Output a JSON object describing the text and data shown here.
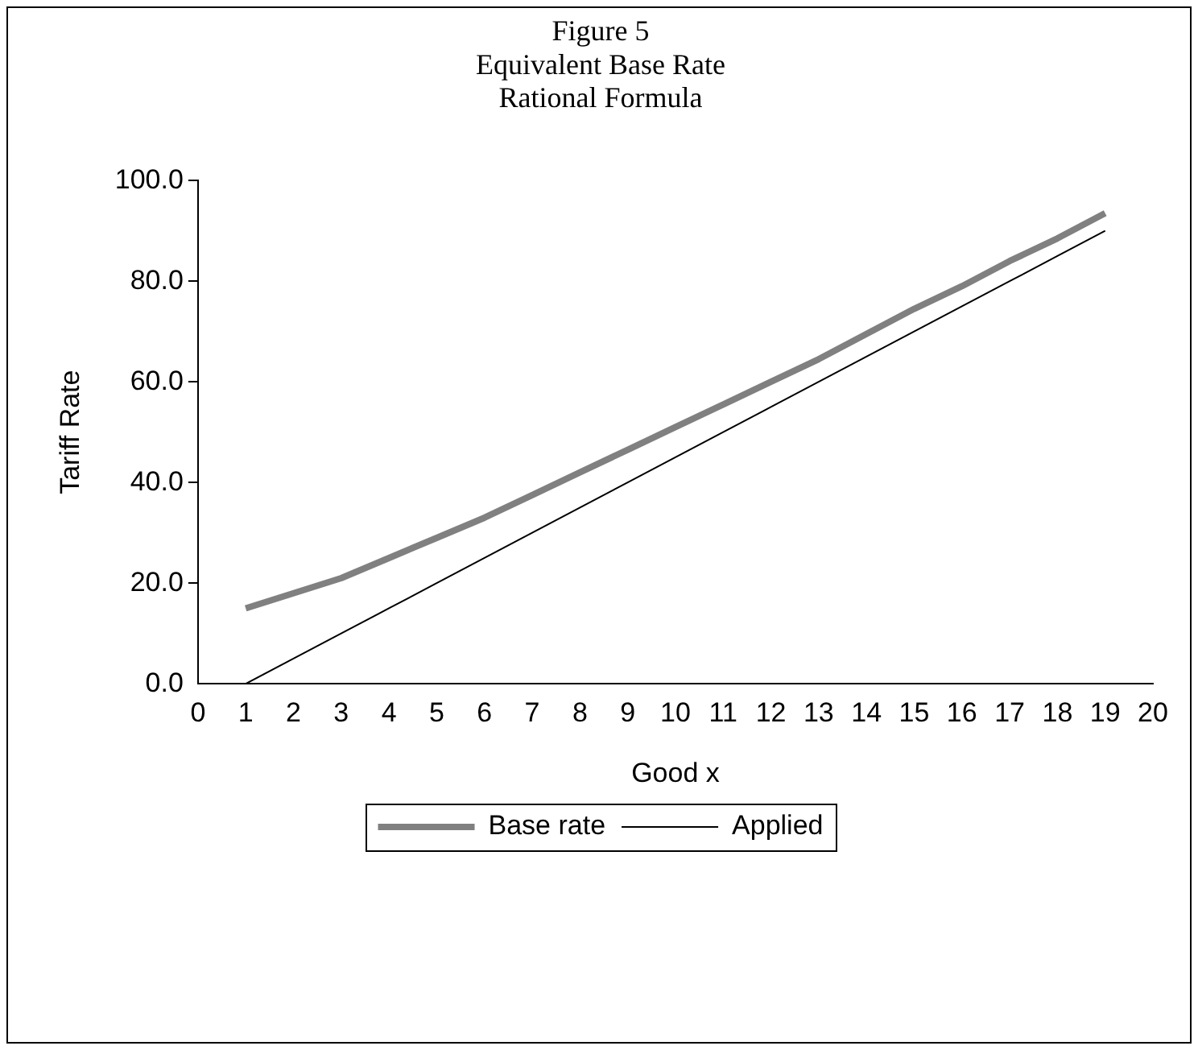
{
  "chart_data": {
    "type": "line",
    "title": [
      "Figure 5",
      "Equivalent Base Rate",
      "Rational Formula"
    ],
    "xlabel": "Good x",
    "ylabel": "Tariff Rate",
    "x": [
      1,
      2,
      3,
      4,
      5,
      6,
      7,
      8,
      9,
      10,
      11,
      12,
      13,
      14,
      15,
      16,
      17,
      18,
      19
    ],
    "series": [
      {
        "name": "Base rate",
        "color": "#808080",
        "values": [
          15,
          18,
          21,
          25,
          29,
          33,
          37.5,
          42,
          46.5,
          51,
          55.5,
          60,
          64.5,
          69.5,
          74.5,
          79,
          84,
          88.5,
          93.5
        ]
      },
      {
        "name": "Applied",
        "color": "#000000",
        "values": [
          0,
          5,
          10,
          15,
          20,
          25,
          30,
          35,
          40,
          45,
          50,
          55,
          60,
          65,
          70,
          75,
          80,
          85,
          90
        ]
      }
    ],
    "xlim": [
      0,
      20
    ],
    "xticks": [
      0,
      1,
      2,
      3,
      4,
      5,
      6,
      7,
      8,
      9,
      10,
      11,
      12,
      13,
      14,
      15,
      16,
      17,
      18,
      19,
      20
    ],
    "ylim": [
      0,
      100
    ],
    "yticks": [
      {
        "value": 0,
        "label": "0.0"
      },
      {
        "value": 20,
        "label": "20.0"
      },
      {
        "value": 40,
        "label": "40.0"
      },
      {
        "value": 60,
        "label": "60.0"
      },
      {
        "value": 80,
        "label": "80.0"
      },
      {
        "value": 100,
        "label": "100.0"
      }
    ],
    "grid": false,
    "legend": "bottom",
    "marker": "none",
    "line_style": "solid"
  }
}
